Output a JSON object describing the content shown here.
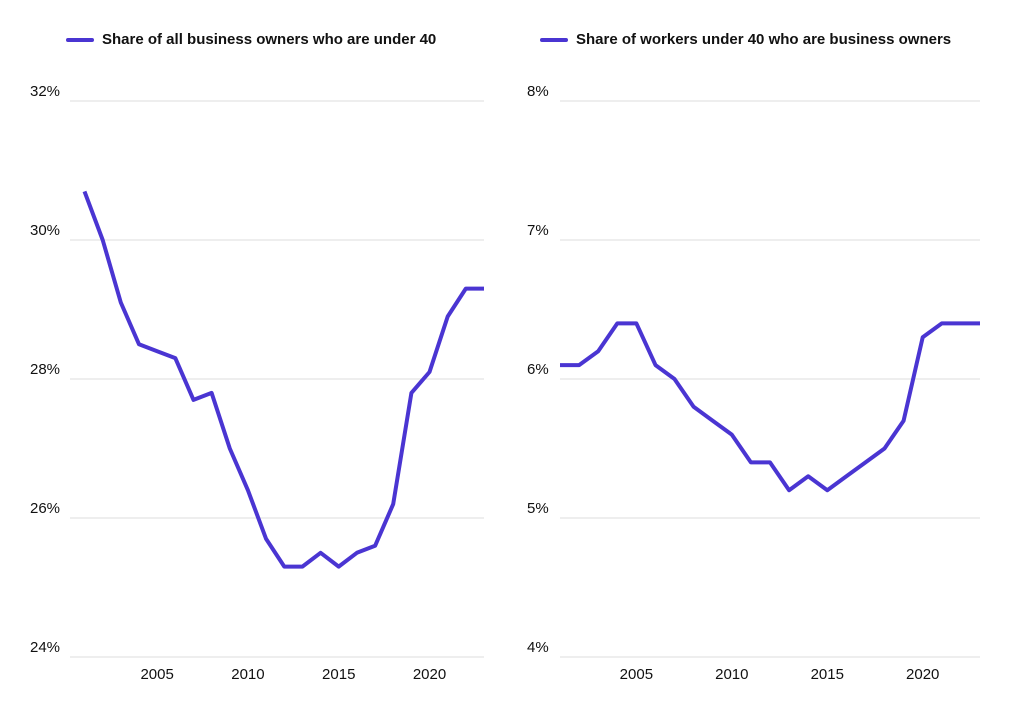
{
  "colors": {
    "line": "#4a35d2",
    "grid": "#dddddd",
    "text": "#111111"
  },
  "chart_data": [
    {
      "type": "line",
      "legend": "top-left",
      "grid": true,
      "series": [
        {
          "name": "Share of all business owners who are under 40",
          "x": [
            2001,
            2002,
            2003,
            2004,
            2005,
            2006,
            2007,
            2008,
            2009,
            2010,
            2011,
            2012,
            2013,
            2014,
            2015,
            2016,
            2017,
            2018,
            2019,
            2020,
            2021,
            2022,
            2023
          ],
          "values": [
            30.7,
            30.0,
            29.1,
            28.5,
            28.4,
            28.3,
            27.7,
            27.8,
            27.0,
            26.4,
            25.7,
            25.3,
            25.3,
            25.5,
            25.3,
            25.5,
            25.6,
            26.2,
            27.8,
            28.1,
            28.9,
            29.3,
            29.3
          ]
        }
      ],
      "xlim": [
        2000.2,
        2023
      ],
      "ylim": [
        24,
        32
      ],
      "xticks": [
        2005,
        2010,
        2015,
        2020
      ],
      "yticks": [
        24,
        26,
        28,
        30,
        32
      ],
      "ytick_labels": [
        "24%",
        "26%",
        "28%",
        "30%",
        "32%"
      ]
    },
    {
      "type": "line",
      "legend": "top-left",
      "grid": true,
      "series": [
        {
          "name": "Share of workers under 40 who are business owners",
          "x": [
            2001,
            2002,
            2003,
            2004,
            2005,
            2006,
            2007,
            2008,
            2009,
            2010,
            2011,
            2012,
            2013,
            2014,
            2015,
            2016,
            2017,
            2018,
            2019,
            2020,
            2021,
            2022,
            2023
          ],
          "values": [
            6.1,
            6.1,
            6.2,
            6.4,
            6.4,
            6.1,
            6.0,
            5.8,
            5.7,
            5.6,
            5.4,
            5.4,
            5.2,
            5.3,
            5.2,
            5.3,
            5.4,
            5.5,
            5.7,
            6.3,
            6.4,
            6.4,
            6.4
          ]
        }
      ],
      "xlim": [
        2001,
        2023
      ],
      "ylim": [
        4,
        8
      ],
      "xticks": [
        2005,
        2010,
        2015,
        2020
      ],
      "yticks": [
        4,
        5,
        6,
        7,
        8
      ],
      "ytick_labels": [
        "4%",
        "5%",
        "6%",
        "7%",
        "8%"
      ]
    }
  ]
}
